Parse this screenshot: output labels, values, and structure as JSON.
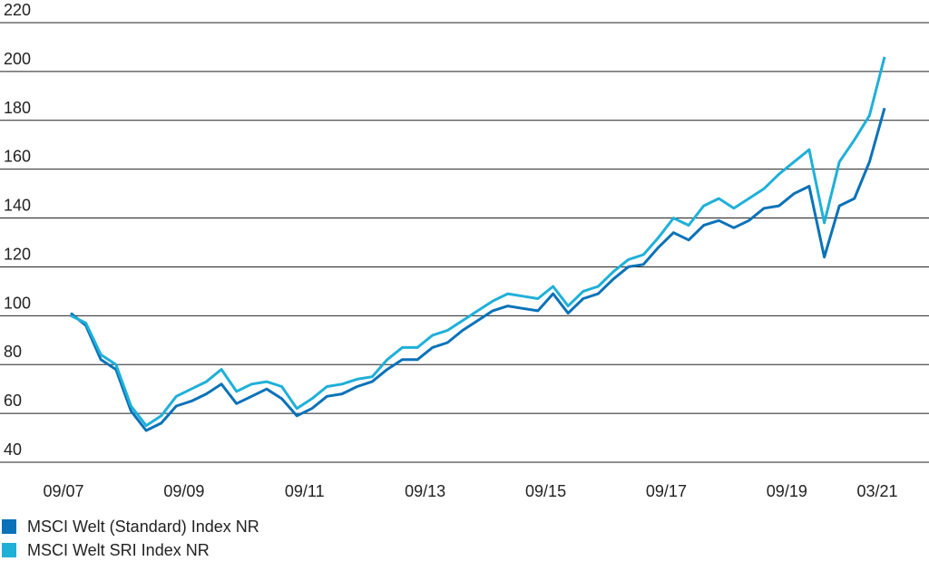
{
  "chart_data": {
    "type": "line",
    "categories": [
      "09/07",
      null,
      null,
      null,
      null,
      null,
      null,
      null,
      "09/09",
      null,
      null,
      null,
      null,
      null,
      null,
      null,
      "09/11",
      null,
      null,
      null,
      null,
      null,
      null,
      null,
      "09/13",
      null,
      null,
      null,
      null,
      null,
      null,
      null,
      "09/15",
      null,
      null,
      null,
      null,
      null,
      null,
      null,
      "09/17",
      null,
      null,
      null,
      null,
      null,
      null,
      null,
      "09/19",
      null,
      null,
      null,
      null,
      null,
      "03/21"
    ],
    "series": [
      {
        "name": "MSCI Welt (Standard) Index NR",
        "color": "#0a72b8",
        "values": [
          101,
          96,
          82,
          78,
          61,
          53,
          56,
          63,
          65,
          68,
          72,
          64,
          67,
          70,
          66,
          59,
          62,
          67,
          68,
          71,
          73,
          78,
          82,
          82,
          87,
          89,
          94,
          98,
          102,
          104,
          103,
          102,
          109,
          101,
          107,
          109,
          115,
          120,
          121,
          128,
          134,
          131,
          137,
          139,
          136,
          139,
          144,
          145,
          150,
          153,
          124,
          145,
          148,
          163,
          185
        ]
      },
      {
        "name": "MSCI Welt SRI Index NR",
        "color": "#1fb0d8",
        "values": [
          100,
          97,
          84,
          80,
          63,
          55,
          59,
          67,
          70,
          73,
          78,
          69,
          72,
          73,
          71,
          62,
          66,
          71,
          72,
          74,
          75,
          82,
          87,
          87,
          92,
          94,
          98,
          102,
          106,
          109,
          108,
          107,
          112,
          104,
          110,
          112,
          118,
          123,
          125,
          132,
          140,
          137,
          145,
          148,
          144,
          148,
          152,
          158,
          163,
          168,
          138,
          163,
          172,
          182,
          206
        ]
      }
    ],
    "ylim": [
      40,
      220
    ],
    "yticks": [
      40,
      60,
      80,
      100,
      120,
      140,
      160,
      180,
      200,
      220
    ],
    "grid": true,
    "legend": "bottom"
  }
}
